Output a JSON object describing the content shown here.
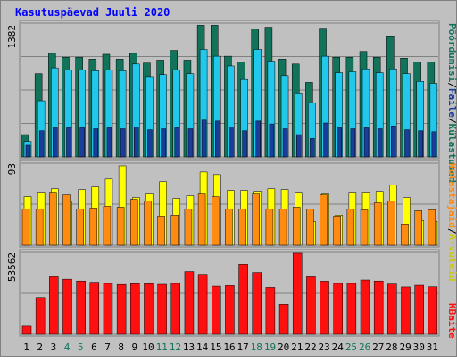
{
  "chart_data": [
    {
      "type": "bar",
      "title": "Kasutuspäevad Juuli 2020",
      "categories": [
        "1",
        "2",
        "3",
        "4",
        "5",
        "6",
        "7",
        "8",
        "9",
        "10",
        "11",
        "12",
        "13",
        "14",
        "15",
        "16",
        "17",
        "18",
        "19",
        "20",
        "21",
        "22",
        "23",
        "24",
        "25",
        "26",
        "27",
        "28",
        "29",
        "30",
        "31"
      ],
      "weekend_days": [
        "4",
        "5",
        "11",
        "12",
        "18",
        "19",
        "25",
        "26"
      ],
      "y_tick_label": "1382",
      "ylim": [
        0,
        1382
      ],
      "grid": true,
      "legend_placement": "right-vertical",
      "series": [
        {
          "name": "Külastused",
          "color": "#10735a",
          "values": [
            230,
            860,
            1070,
            1030,
            1030,
            1010,
            1060,
            1010,
            1070,
            970,
            1000,
            1100,
            1000,
            1360,
            1360,
            1040,
            980,
            1320,
            1340,
            1010,
            960,
            770,
            1330,
            1030,
            1030,
            1090,
            1030,
            1250,
            1020,
            980,
            980
          ]
        },
        {
          "name": "Faile",
          "color": "#22c8ec",
          "values": [
            160,
            580,
            920,
            900,
            900,
            890,
            900,
            890,
            960,
            830,
            850,
            900,
            860,
            1110,
            1040,
            940,
            800,
            1110,
            990,
            840,
            660,
            560,
            1040,
            870,
            880,
            910,
            870,
            910,
            860,
            780,
            760
          ]
        },
        {
          "name": "Pöördumisi",
          "color": "#1a3c9a",
          "values": [
            120,
            270,
            300,
            300,
            300,
            290,
            300,
            290,
            310,
            280,
            290,
            300,
            290,
            380,
            370,
            310,
            270,
            370,
            340,
            290,
            230,
            190,
            350,
            300,
            290,
            300,
            290,
            320,
            280,
            270,
            260
          ]
        }
      ]
    },
    {
      "type": "bar",
      "categories": [
        "1",
        "2",
        "3",
        "4",
        "5",
        "6",
        "7",
        "8",
        "9",
        "10",
        "11",
        "12",
        "13",
        "14",
        "15",
        "16",
        "17",
        "18",
        "19",
        "20",
        "21",
        "22",
        "23",
        "24",
        "25",
        "26",
        "27",
        "28",
        "29",
        "30",
        "31"
      ],
      "y_tick_label": "93",
      "ylim": [
        0,
        93
      ],
      "grid": true,
      "series": [
        {
          "name": "Külastajaid",
          "color": "#ffff00",
          "values": [
            55,
            60,
            64,
            50,
            63,
            66,
            75,
            90,
            54,
            58,
            72,
            53,
            56,
            83,
            80,
            62,
            62,
            61,
            64,
            63,
            60,
            27,
            58,
            34,
            60,
            60,
            61,
            68,
            54,
            28,
            27
          ]
        },
        {
          "name": "Arvuteid",
          "color": "#ff8c10",
          "values": [
            41,
            41,
            60,
            57,
            41,
            42,
            44,
            43,
            52,
            50,
            33,
            34,
            41,
            58,
            55,
            41,
            41,
            58,
            41,
            41,
            43,
            41,
            57,
            33,
            41,
            40,
            48,
            50,
            24,
            39,
            40
          ]
        }
      ]
    },
    {
      "type": "bar",
      "categories": [
        "1",
        "2",
        "3",
        "4",
        "5",
        "6",
        "7",
        "8",
        "9",
        "10",
        "11",
        "12",
        "13",
        "14",
        "15",
        "16",
        "17",
        "18",
        "19",
        "20",
        "21",
        "22",
        "23",
        "24",
        "25",
        "26",
        "27",
        "28",
        "29",
        "30",
        "31"
      ],
      "y_tick_label": "53562",
      "ylim": [
        0,
        53562
      ],
      "grid": true,
      "series": [
        {
          "name": "KBaite",
          "color": "#ff1010",
          "values": [
            5300,
            24000,
            37600,
            36000,
            34800,
            34000,
            33200,
            32500,
            33000,
            33000,
            32600,
            33200,
            41000,
            39200,
            31400,
            31800,
            45800,
            40400,
            30600,
            19600,
            53000,
            37600,
            34700,
            33200,
            33200,
            35500,
            34800,
            32800,
            30900,
            32000,
            31000
          ]
        }
      ]
    }
  ],
  "legend": {
    "top": {
      "label_1": "Pöördumisi",
      "sep_1": "/",
      "label_2": "Faile",
      "sep_2": "/",
      "label_3": "Külastused"
    },
    "mid": {
      "label_1": "Külastajaid",
      "sep_1": "/",
      "label_2": "Arvuteid"
    },
    "bot": {
      "label_1": "KBaite"
    }
  },
  "colors": {
    "background": "#c0c0c0",
    "frame": "#ffffff",
    "title": "#0000ff",
    "weekday_label": "#000000",
    "weekend_label": "#10735a"
  }
}
